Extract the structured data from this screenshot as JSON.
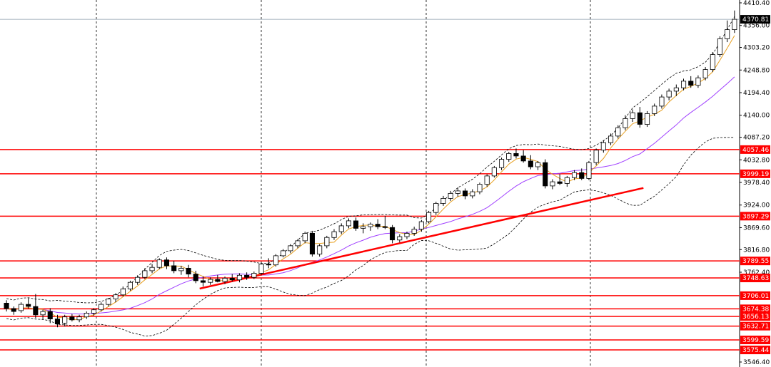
{
  "chart_data": {
    "type": "candlestick",
    "title": "",
    "xlabel": "",
    "ylabel": "",
    "ylim": [
      3546.4,
      4410.4
    ],
    "y_ticks": [
      "4410.40",
      "4356.00",
      "4303.20",
      "4248.80",
      "4194.40",
      "4140.00",
      "4087.20",
      "4032.80",
      "3978.40",
      "3924.00",
      "3869.60",
      "3816.80",
      "3762.40",
      "3546.40"
    ],
    "grid": "dashed vertical",
    "current_price": {
      "value": 4370.81,
      "label": "4370.81"
    },
    "horizontal_levels": [
      {
        "value": 4057.46,
        "label": "4057.46"
      },
      {
        "value": 3999.19,
        "label": "3999.19"
      },
      {
        "value": 3897.29,
        "label": "3897.29"
      },
      {
        "value": 3789.55,
        "label": "3789.55"
      },
      {
        "value": 3748.63,
        "label": "3748.63"
      },
      {
        "value": 3706.01,
        "label": "3706.01"
      },
      {
        "value": 3674.38,
        "label": "3674.38"
      },
      {
        "value": 3656.13,
        "label": "3656.13"
      },
      {
        "value": 3632.71,
        "label": "3632.71"
      },
      {
        "value": 3599.59,
        "label": "3599.59"
      },
      {
        "value": 3575.44,
        "label": "3575.44"
      }
    ],
    "trendline": {
      "start_bar": 0.27,
      "start_value": 3723,
      "end_bar": 0.87,
      "end_value": 3965
    },
    "candles": [
      [
        3688,
        3695,
        3668,
        3675
      ],
      [
        3675,
        3680,
        3660,
        3668
      ],
      [
        3670,
        3690,
        3665,
        3685
      ],
      [
        3685,
        3700,
        3675,
        3680
      ],
      [
        3680,
        3710,
        3652,
        3660
      ],
      [
        3660,
        3672,
        3648,
        3668
      ],
      [
        3668,
        3676,
        3640,
        3650
      ],
      [
        3650,
        3660,
        3630,
        3638
      ],
      [
        3640,
        3660,
        3632,
        3655
      ],
      [
        3655,
        3662,
        3644,
        3648
      ],
      [
        3648,
        3660,
        3642,
        3655
      ],
      [
        3655,
        3668,
        3650,
        3664
      ],
      [
        3664,
        3676,
        3658,
        3672
      ],
      [
        3672,
        3690,
        3668,
        3685
      ],
      [
        3685,
        3700,
        3680,
        3698
      ],
      [
        3698,
        3712,
        3690,
        3708
      ],
      [
        3708,
        3728,
        3704,
        3722
      ],
      [
        3722,
        3742,
        3718,
        3738
      ],
      [
        3738,
        3755,
        3732,
        3750
      ],
      [
        3750,
        3772,
        3746,
        3766
      ],
      [
        3766,
        3782,
        3760,
        3774
      ],
      [
        3774,
        3796,
        3770,
        3792
      ],
      [
        3792,
        3798,
        3770,
        3778
      ],
      [
        3778,
        3790,
        3760,
        3766
      ],
      [
        3766,
        3778,
        3756,
        3772
      ],
      [
        3772,
        3780,
        3750,
        3758
      ],
      [
        3758,
        3766,
        3736,
        3742
      ],
      [
        3742,
        3752,
        3728,
        3738
      ],
      [
        3738,
        3750,
        3732,
        3745
      ],
      [
        3745,
        3756,
        3738,
        3740
      ],
      [
        3740,
        3752,
        3734,
        3748
      ],
      [
        3748,
        3758,
        3740,
        3744
      ],
      [
        3744,
        3760,
        3738,
        3755
      ],
      [
        3755,
        3762,
        3744,
        3750
      ],
      [
        3750,
        3764,
        3746,
        3760
      ],
      [
        3760,
        3786,
        3756,
        3782
      ],
      [
        3782,
        3796,
        3772,
        3780
      ],
      [
        3780,
        3806,
        3776,
        3802
      ],
      [
        3802,
        3818,
        3798,
        3814
      ],
      [
        3814,
        3830,
        3808,
        3826
      ],
      [
        3826,
        3842,
        3820,
        3838
      ],
      [
        3838,
        3860,
        3832,
        3856
      ],
      [
        3856,
        3862,
        3800,
        3806
      ],
      [
        3806,
        3830,
        3800,
        3826
      ],
      [
        3826,
        3850,
        3820,
        3846
      ],
      [
        3846,
        3866,
        3840,
        3860
      ],
      [
        3860,
        3880,
        3854,
        3874
      ],
      [
        3874,
        3892,
        3868,
        3886
      ],
      [
        3886,
        3894,
        3862,
        3868
      ],
      [
        3868,
        3880,
        3856,
        3872
      ],
      [
        3872,
        3882,
        3862,
        3878
      ],
      [
        3878,
        3890,
        3866,
        3872
      ],
      [
        3872,
        3898,
        3866,
        3870
      ],
      [
        3870,
        3876,
        3832,
        3840
      ],
      [
        3840,
        3854,
        3834,
        3848
      ],
      [
        3848,
        3860,
        3842,
        3856
      ],
      [
        3856,
        3872,
        3850,
        3866
      ],
      [
        3866,
        3888,
        3860,
        3884
      ],
      [
        3884,
        3910,
        3880,
        3906
      ],
      [
        3906,
        3932,
        3900,
        3928
      ],
      [
        3928,
        3946,
        3922,
        3940
      ],
      [
        3940,
        3958,
        3934,
        3952
      ],
      [
        3952,
        3966,
        3944,
        3958
      ],
      [
        3958,
        3964,
        3938,
        3946
      ],
      [
        3946,
        3962,
        3940,
        3956
      ],
      [
        3956,
        3978,
        3950,
        3974
      ],
      [
        3974,
        3998,
        3968,
        3994
      ],
      [
        3994,
        4018,
        3990,
        4014
      ],
      [
        4014,
        4038,
        4008,
        4034
      ],
      [
        4034,
        4052,
        4028,
        4048
      ],
      [
        4048,
        4060,
        4036,
        4042
      ],
      [
        4042,
        4056,
        4026,
        4030
      ],
      [
        4030,
        4044,
        4010,
        4016
      ],
      [
        4016,
        4030,
        4008,
        4026
      ],
      [
        4026,
        4034,
        3964,
        3970
      ],
      [
        3970,
        3986,
        3962,
        3980
      ],
      [
        3980,
        3998,
        3972,
        3976
      ],
      [
        3976,
        3994,
        3968,
        3990
      ],
      [
        3990,
        4008,
        3984,
        4002
      ],
      [
        4002,
        4012,
        3984,
        3988
      ],
      [
        3988,
        4030,
        3984,
        4026
      ],
      [
        4026,
        4060,
        4020,
        4056
      ],
      [
        4056,
        4080,
        4050,
        4074
      ],
      [
        4074,
        4096,
        4068,
        4090
      ],
      [
        4090,
        4116,
        4084,
        4110
      ],
      [
        4110,
        4140,
        4104,
        4132
      ],
      [
        4132,
        4154,
        4124,
        4146
      ],
      [
        4146,
        4160,
        4110,
        4118
      ],
      [
        4118,
        4150,
        4112,
        4144
      ],
      [
        4144,
        4168,
        4138,
        4162
      ],
      [
        4162,
        4190,
        4156,
        4184
      ],
      [
        4184,
        4204,
        4176,
        4198
      ],
      [
        4198,
        4214,
        4186,
        4206
      ],
      [
        4206,
        4228,
        4200,
        4222
      ],
      [
        4222,
        4234,
        4206,
        4212
      ],
      [
        4212,
        4236,
        4206,
        4230
      ],
      [
        4230,
        4256,
        4224,
        4250
      ],
      [
        4250,
        4292,
        4244,
        4286
      ],
      [
        4286,
        4330,
        4280,
        4324
      ],
      [
        4324,
        4368,
        4316,
        4346
      ],
      [
        4346,
        4392,
        4338,
        4370.81
      ]
    ]
  }
}
